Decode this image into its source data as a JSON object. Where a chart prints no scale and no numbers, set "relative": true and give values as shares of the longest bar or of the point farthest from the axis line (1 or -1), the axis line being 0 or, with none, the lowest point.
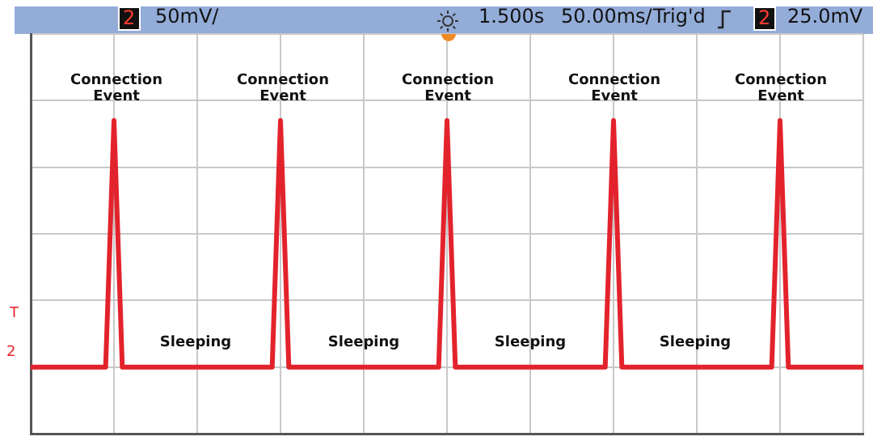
{
  "chart_data": {
    "type": "line",
    "relative": true,
    "grid": true,
    "legend": false,
    "tick_labels": false,
    "marker": "none",
    "line_style": "solid",
    "categories": [
      null,
      null,
      null,
      null,
      null,
      null,
      null,
      null,
      null,
      null,
      null,
      null,
      null,
      null,
      null,
      null,
      null,
      null,
      null,
      null,
      null,
      null,
      null,
      null,
      null,
      null,
      null,
      null,
      null,
      null,
      null,
      null,
      null,
      null,
      null,
      null,
      null,
      null,
      null,
      null,
      null,
      null,
      null,
      null,
      null,
      null,
      null,
      null,
      null,
      null,
      null,
      null,
      null,
      null,
      null,
      null,
      null,
      null,
      null,
      null,
      null,
      null,
      null,
      null,
      null,
      null,
      null,
      null,
      null,
      null,
      null,
      null,
      null,
      null,
      null,
      null,
      null,
      null,
      null,
      null,
      null,
      null,
      null,
      null,
      null,
      null,
      null,
      null,
      null,
      null,
      null,
      null,
      null,
      null,
      null,
      null,
      null,
      null,
      null,
      null,
      null
    ],
    "series": [
      {
        "color": "#e3232c",
        "values": [
          0,
          0,
          0,
          0,
          0,
          0,
          0,
          0,
          0,
          0,
          1,
          0,
          0,
          0,
          0,
          0,
          0,
          0,
          0,
          0,
          0,
          0,
          0,
          0,
          0,
          0,
          0,
          0,
          0,
          0,
          1,
          0,
          0,
          0,
          0,
          0,
          0,
          0,
          0,
          0,
          0,
          0,
          0,
          0,
          0,
          0,
          0,
          0,
          0,
          0,
          1,
          0,
          0,
          0,
          0,
          0,
          0,
          0,
          0,
          0,
          0,
          0,
          0,
          0,
          0,
          0,
          0,
          0,
          0,
          0,
          1,
          0,
          0,
          0,
          0,
          0,
          0,
          0,
          0,
          0,
          0,
          0,
          0,
          0,
          0,
          0,
          0,
          0,
          0,
          0,
          1,
          0,
          0,
          0,
          0,
          0,
          0,
          0,
          0,
          0,
          0
        ]
      }
    ],
    "annotations": [
      "2",
      "50mV/",
      "1.500s",
      "50.00ms/",
      "Trig'd",
      "2",
      "25.0mV",
      "Connection Event",
      "Connection Event",
      "Connection Event",
      "Connection Event",
      "Connection Event",
      "Sleeping",
      "Sleeping",
      "Sleeping",
      "Sleeping",
      "T",
      "2"
    ]
  }
}
